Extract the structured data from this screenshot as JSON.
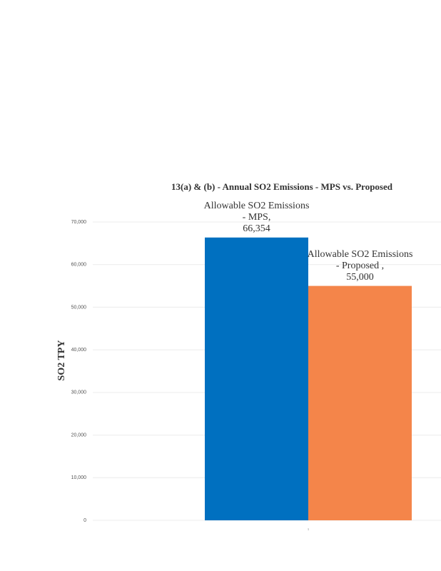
{
  "chart_data": {
    "type": "bar",
    "title": "13(a) & (b) - Annual SO2 Emissions - MPS vs. Proposed",
    "y_label": "SO2 TPY",
    "categories": [
      "1"
    ],
    "series": [
      {
        "name": "Allowable SO2 Emissions - MPS,",
        "color": "#0070c0",
        "values": [
          66354
        ],
        "value_labels": [
          "66,354"
        ]
      },
      {
        "name": "Allowable SO2 Emissions - Proposed ,",
        "color": "#f4854a",
        "values": [
          55000
        ],
        "value_labels": [
          "55,000"
        ]
      }
    ],
    "ylim": [
      0,
      70000
    ],
    "yticks": [
      {
        "value": 0,
        "label": "0"
      },
      {
        "value": 10000,
        "label": "10,000"
      },
      {
        "value": 20000,
        "label": "20,000"
      },
      {
        "value": 30000,
        "label": "30,000"
      },
      {
        "value": 40000,
        "label": "40,000"
      },
      {
        "value": 50000,
        "label": "50,000"
      },
      {
        "value": 60000,
        "label": "60,000"
      },
      {
        "value": 70000,
        "label": "70,000"
      }
    ],
    "grid": true
  }
}
